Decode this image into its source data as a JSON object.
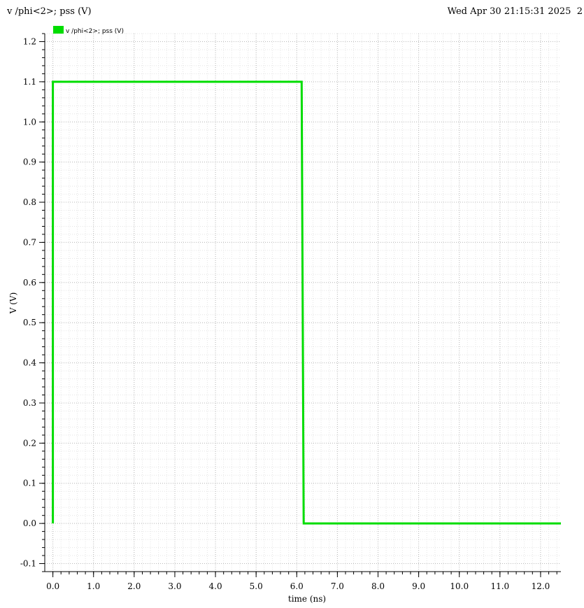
{
  "header": {
    "title": "v /phi<2>; pss (V)",
    "date": "Wed Apr 30 21:15:31 2025",
    "page_number": "2"
  },
  "chart_data": {
    "type": "line",
    "xlabel": "time (ns)",
    "ylabel": "V (V)",
    "xlim": [
      -0.2,
      12.5
    ],
    "ylim": [
      -0.12,
      1.22
    ],
    "xticks": [
      0.0,
      1.0,
      2.0,
      3.0,
      4.0,
      5.0,
      6.0,
      7.0,
      8.0,
      9.0,
      10.0,
      11.0,
      12.0
    ],
    "xtick_labels": [
      "0.0",
      "1.0",
      "2.0",
      "3.0",
      "4.0",
      "5.0",
      "6.0",
      "7.0",
      "8.0",
      "9.0",
      "10.0",
      "11.0",
      "12.0"
    ],
    "yticks": [
      -0.1,
      0.0,
      0.1,
      0.2,
      0.3,
      0.4,
      0.5,
      0.6,
      0.7,
      0.8,
      0.9,
      1.0,
      1.1,
      1.2
    ],
    "ytick_labels": [
      "-0.1",
      "0.0",
      "0.1",
      "0.2",
      "0.3",
      "0.4",
      "0.5",
      "0.6",
      "0.7",
      "0.8",
      "0.9",
      "1.0",
      "1.1",
      "1.2"
    ],
    "grid": true,
    "legend_position": "top-left",
    "series": [
      {
        "name": "v /phi<2>; pss (V)",
        "color": "#00dd00",
        "x": [
          0.0,
          0.0,
          6.12,
          6.17,
          12.5
        ],
        "y": [
          0.0,
          1.1,
          1.1,
          0.0,
          0.0
        ]
      }
    ]
  }
}
